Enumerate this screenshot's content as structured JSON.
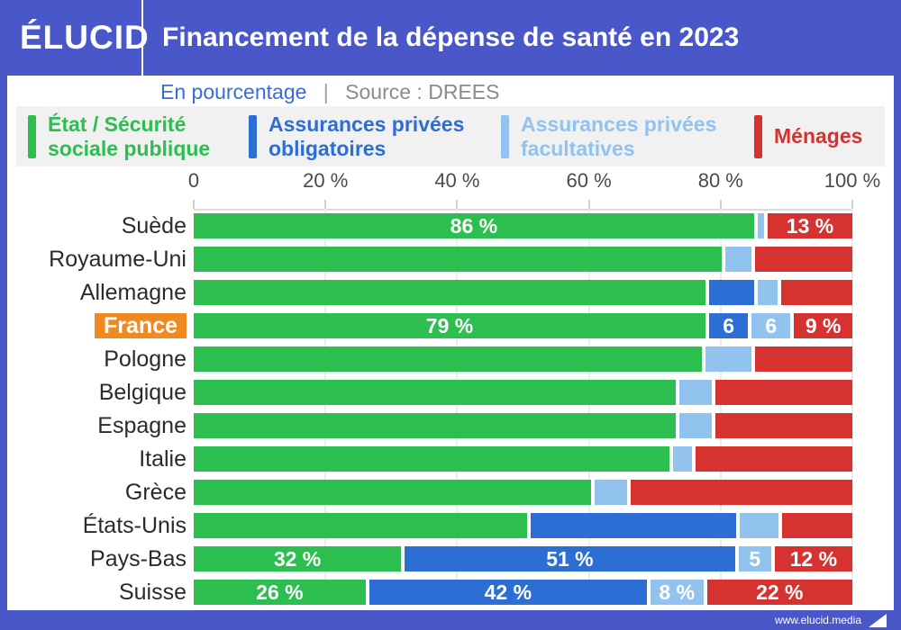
{
  "header": {
    "logo": "ÉLUCID",
    "title": "Financement de la dépense de santé en 2023"
  },
  "subtitle": {
    "unit_label": "En pourcentage",
    "separator": "|",
    "source": "Source : DREES"
  },
  "footer": {
    "website": "www.elucid.media"
  },
  "colors": {
    "frame_blue": "#4a57c8",
    "highlight_orange": "#f08920",
    "legend_background": "#f1f1f1",
    "subtitle_blue": "#3a6bd8",
    "subtitle_gray": "#8b8b8b"
  },
  "chart_data": {
    "type": "bar",
    "orientation": "horizontal",
    "stacked": true,
    "title": "Financement de la dépense de santé en 2023",
    "xlabel": "",
    "ylabel": "",
    "unit": "%",
    "xlim": [
      0,
      100
    ],
    "grid": true,
    "legend_position": "top",
    "x_ticks": [
      "0",
      "20 %",
      "40 %",
      "60 %",
      "80 %",
      "100 %"
    ],
    "tick_values": [
      0,
      20,
      40,
      60,
      80,
      100
    ],
    "series": [
      {
        "key": "etat",
        "label": "État / Sécurité sociale publique",
        "color": "#2dbe50"
      },
      {
        "key": "obligatoires",
        "label": "Assurances privées obligatoires",
        "color": "#2d6ed4"
      },
      {
        "key": "facultatives",
        "label": "Assurances privées facultatives",
        "color": "#92c3ee"
      },
      {
        "key": "menages",
        "label": "Ménages",
        "color": "#d63230"
      }
    ],
    "rows": [
      {
        "country": "Suède",
        "highlight": false,
        "values": [
          86,
          0,
          1,
          13
        ],
        "labels": [
          "86 %",
          null,
          null,
          "13 %"
        ]
      },
      {
        "country": "Royaume-Uni",
        "highlight": false,
        "values": [
          81,
          0,
          4,
          15
        ],
        "labels": [
          null,
          null,
          null,
          null
        ]
      },
      {
        "country": "Allemagne",
        "highlight": false,
        "values": [
          79,
          7,
          3,
          11
        ],
        "labels": [
          null,
          null,
          null,
          null
        ]
      },
      {
        "country": "France",
        "highlight": true,
        "values": [
          79,
          6,
          6,
          9
        ],
        "labels": [
          "79 %",
          "6",
          "6",
          "9 %"
        ]
      },
      {
        "country": "Pologne",
        "highlight": false,
        "values": [
          78,
          0,
          7,
          15
        ],
        "labels": [
          null,
          null,
          null,
          null
        ]
      },
      {
        "country": "Belgique",
        "highlight": false,
        "values": [
          74,
          0,
          5,
          21
        ],
        "labels": [
          null,
          null,
          null,
          null
        ]
      },
      {
        "country": "Espagne",
        "highlight": false,
        "values": [
          74,
          0,
          5,
          21
        ],
        "labels": [
          null,
          null,
          null,
          null
        ]
      },
      {
        "country": "Italie",
        "highlight": false,
        "values": [
          73,
          0,
          3,
          24
        ],
        "labels": [
          null,
          null,
          null,
          null
        ]
      },
      {
        "country": "Grèce",
        "highlight": false,
        "values": [
          61,
          0,
          5,
          34
        ],
        "labels": [
          null,
          null,
          null,
          null
        ]
      },
      {
        "country": "États-Unis",
        "highlight": false,
        "values": [
          52,
          32,
          6,
          11
        ],
        "labels": [
          null,
          null,
          null,
          null
        ]
      },
      {
        "country": "Pays-Bas",
        "highlight": false,
        "values": [
          32,
          51,
          5,
          12
        ],
        "labels": [
          "32 %",
          "51 %",
          "5",
          "12 %"
        ]
      },
      {
        "country": "Suisse",
        "highlight": false,
        "values": [
          26,
          42,
          8,
          22
        ],
        "labels": [
          "26 %",
          "42 %",
          "8 %",
          "22 %"
        ]
      }
    ]
  }
}
